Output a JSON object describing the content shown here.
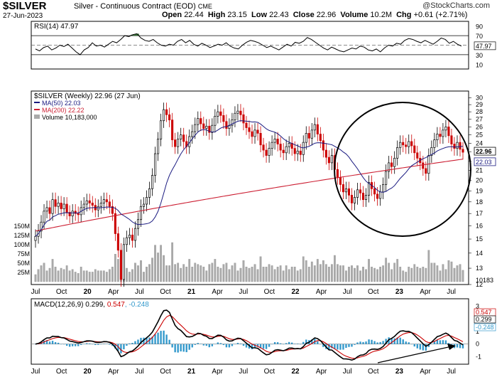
{
  "header": {
    "symbol": "$SILVER",
    "name": "Silver - Continuous Contract (EOD)",
    "exchange": "CME",
    "date": "27-Jun-2023",
    "open_label": "Open",
    "open": "22.44",
    "high_label": "High",
    "high": "23.15",
    "low_label": "Low",
    "low": "22.43",
    "close_label": "Close",
    "close": "22.96",
    "volume_label": "Volume",
    "volume": "10.2M",
    "chg_label": "Chg",
    "chg": "+0.61 (+2.71%)",
    "watermark": "@StockCharts.com"
  },
  "colors": {
    "up_candle": "#000000",
    "down_candle": "#cc0000",
    "ma50": "#1a1a80",
    "ma200": "#cc1f33",
    "volume": "#aaaaaa",
    "rsi_fill": "#3a7a3a",
    "macd_hist": "#3399cc"
  },
  "chart_data": [
    {
      "type": "line",
      "title": "RSI(14) 47.97",
      "series": [
        {
          "name": "RSI(14)",
          "last": 47.97,
          "values": [
            42,
            38,
            45,
            48,
            40,
            44,
            50,
            47,
            52,
            44,
            36,
            30,
            40,
            45,
            55,
            48,
            50,
            46,
            52,
            58,
            55,
            62,
            70,
            68,
            72,
            74,
            65,
            60,
            58,
            62,
            55,
            50,
            48,
            52,
            50,
            58,
            62,
            55,
            60,
            52,
            48,
            54,
            50,
            45,
            48,
            52,
            50,
            55,
            48,
            44,
            42,
            50,
            56,
            60,
            58,
            55,
            50,
            45,
            48,
            44,
            40,
            46,
            52,
            48,
            56,
            54,
            58,
            66,
            62,
            56,
            50,
            44,
            40,
            46,
            42,
            38,
            36,
            40,
            44,
            42,
            48,
            46,
            40,
            38,
            42,
            36,
            44,
            50,
            48,
            54,
            52,
            60,
            64,
            62,
            58,
            55,
            60,
            56,
            52,
            58,
            65,
            62,
            54,
            58,
            52,
            48
          ]
        }
      ],
      "ylim": [
        0,
        100
      ],
      "y_ticks": [
        10,
        30,
        50,
        70,
        90
      ],
      "reference_lines": [
        30,
        70
      ]
    },
    {
      "type": "candlestick",
      "title": "$SILVER (Weekly) 22.96 (27 Jun)",
      "legend": [
        "MA(50) 22.03",
        "MA(200) 22.22",
        "Volume 10,183,000"
      ],
      "y_ticks": [
        12,
        13,
        14,
        15,
        16,
        17,
        18,
        19,
        20,
        21,
        22,
        23,
        24,
        25,
        26,
        27,
        28,
        29,
        30
      ],
      "y_scale": "log",
      "volume_ticks": [
        "25M",
        "50M",
        "75M",
        "100M",
        "125M",
        "150M"
      ],
      "last_price_labels": [
        "22.96",
        "22.03"
      ],
      "volume_readout": "10183",
      "x_ticks": [
        "Jul",
        "Oct",
        "20",
        "Apr",
        "Jul",
        "Oct",
        "21",
        "Apr",
        "Jul",
        "Oct",
        "22",
        "Apr",
        "Jul",
        "Oct",
        "23",
        "Apr",
        "Jul"
      ],
      "closes": [
        15.2,
        15.6,
        16.3,
        17.2,
        17.5,
        17.0,
        18.2,
        17.6,
        17.9,
        17.4,
        17.8,
        17.1,
        16.8,
        17.2,
        17.0,
        16.9,
        17.5,
        17.8,
        18.1,
        17.9,
        17.7,
        17.3,
        17.6,
        17.9,
        18.2,
        18.0,
        17.6,
        17.0,
        15.4,
        14.2,
        12.3,
        14.6,
        15.1,
        15.3,
        14.9,
        15.8,
        16.5,
        17.6,
        17.8,
        18.4,
        19.2,
        20.5,
        22.8,
        24.5,
        26.8,
        28.3,
        27.6,
        26.9,
        24.4,
        23.6,
        24.5,
        25.0,
        24.2,
        23.6,
        24.8,
        25.4,
        26.3,
        27.1,
        26.4,
        25.8,
        26.1,
        25.3,
        26.2,
        27.4,
        28.0,
        27.5,
        26.7,
        25.8,
        26.2,
        26.9,
        27.8,
        28.1,
        27.6,
        26.5,
        25.9,
        25.4,
        24.8,
        25.6,
        25.2,
        23.8,
        23.2,
        22.6,
        23.4,
        24.1,
        24.5,
        23.9,
        23.2,
        22.9,
        23.6,
        24.0,
        23.4,
        22.8,
        23.1,
        22.7,
        24.1,
        25.2,
        24.6,
        25.6,
        26.3,
        25.1,
        24.3,
        23.2,
        22.4,
        21.8,
        22.6,
        21.1,
        20.3,
        19.6,
        18.9,
        19.2,
        18.6,
        17.9,
        18.4,
        19.1,
        18.8,
        18.2,
        18.6,
        19.8,
        19.2,
        18.7,
        18.3,
        18.9,
        19.6,
        20.9,
        21.8,
        21.4,
        22.3,
        23.5,
        24.1,
        23.8,
        23.6,
        24.2,
        23.7,
        22.9,
        22.3,
        21.8,
        21.2,
        20.7,
        22.6,
        23.5,
        24.4,
        25.1,
        24.8,
        25.6,
        26.0,
        24.9,
        23.9,
        23.4,
        24.1,
        23.3,
        22.96
      ]
    },
    {
      "type": "line",
      "title": "MACD(12,26,9) 0.299, 0.547, -0.248",
      "series": [
        {
          "name": "MACD(12,26,9)",
          "last": 0.299
        },
        {
          "name": "signal",
          "last": 0.547
        },
        {
          "name": "histogram",
          "last": -0.248
        }
      ],
      "y_ticks": [
        -1,
        0,
        1,
        2,
        3
      ],
      "value_labels": [
        "0.547",
        "0.299",
        "-0.248"
      ],
      "x_ticks": [
        "Jul",
        "Oct",
        "20",
        "Apr",
        "Jul",
        "Oct",
        "21",
        "Apr",
        "Jul",
        "Oct",
        "22",
        "Apr",
        "Jul",
        "Oct",
        "23",
        "Apr",
        "Jul"
      ]
    }
  ]
}
